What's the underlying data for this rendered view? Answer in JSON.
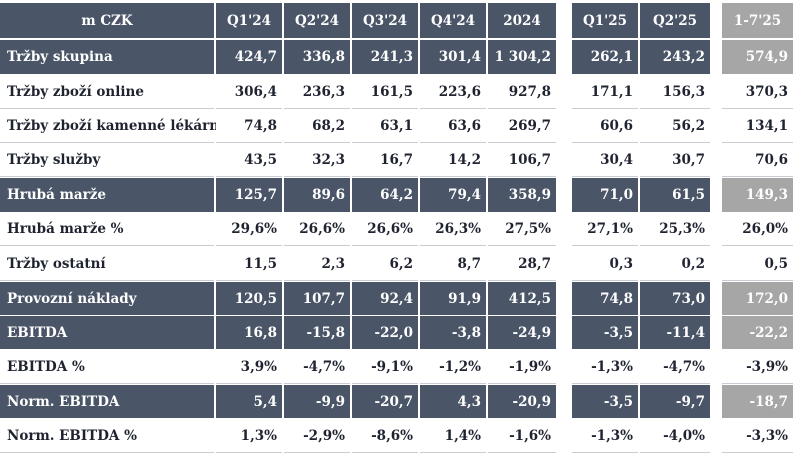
{
  "header": {
    "label": "m CZK",
    "columns": [
      "Q1'24",
      "Q2'24",
      "Q3'24",
      "Q4'24",
      "2024",
      "Q1'25",
      "Q2'25",
      "1-7'25"
    ]
  },
  "rows": [
    {
      "label": "Tržby skupina",
      "style": "dark",
      "values": [
        "424,7",
        "336,8",
        "241,3",
        "301,4",
        "1 304,2",
        "262,1",
        "243,2",
        "574,9"
      ]
    },
    {
      "label": "Tržby zboží online",
      "style": "white",
      "values": [
        "306,4",
        "236,3",
        "161,5",
        "223,6",
        "927,8",
        "171,1",
        "156,3",
        "370,3"
      ]
    },
    {
      "label": "Tržby zboží kamenné lékárny",
      "style": "white",
      "values": [
        "74,8",
        "68,2",
        "63,1",
        "63,6",
        "269,7",
        "60,6",
        "56,2",
        "134,1"
      ]
    },
    {
      "label": "Tržby služby",
      "style": "white",
      "values": [
        "43,5",
        "32,3",
        "16,7",
        "14,2",
        "106,7",
        "30,4",
        "30,7",
        "70,6"
      ]
    },
    {
      "label": "Hrubá marže",
      "style": "dark",
      "values": [
        "125,7",
        "89,6",
        "64,2",
        "79,4",
        "358,9",
        "71,0",
        "61,5",
        "149,3"
      ]
    },
    {
      "label": "Hrubá marže %",
      "style": "white",
      "values": [
        "29,6%",
        "26,6%",
        "26,6%",
        "26,3%",
        "27,5%",
        "27,1%",
        "25,3%",
        "26,0%"
      ]
    },
    {
      "label": "Tržby ostatní",
      "style": "white",
      "values": [
        "11,5",
        "2,3",
        "6,2",
        "8,7",
        "28,7",
        "0,3",
        "0,2",
        "0,5"
      ]
    },
    {
      "label": "Provozní náklady",
      "style": "dark",
      "values": [
        "120,5",
        "107,7",
        "92,4",
        "91,9",
        "412,5",
        "74,8",
        "73,0",
        "172,0"
      ]
    },
    {
      "label": "EBITDA",
      "style": "dark",
      "values": [
        "16,8",
        "-15,8",
        "-22,0",
        "-3,8",
        "-24,9",
        "-3,5",
        "-11,4",
        "-22,2"
      ]
    },
    {
      "label": "EBITDA %",
      "style": "white",
      "values": [
        "3,9%",
        "-4,7%",
        "-9,1%",
        "-1,2%",
        "-1,9%",
        "-1,3%",
        "-4,7%",
        "-3,9%"
      ]
    },
    {
      "label": "Norm. EBITDA",
      "style": "dark",
      "values": [
        "5,4",
        "-9,9",
        "-20,7",
        "4,3",
        "-20,9",
        "-3,5",
        "-9,7",
        "-18,7"
      ]
    },
    {
      "label": "Norm. EBITDA %",
      "style": "white",
      "values": [
        "1,3%",
        "-2,9%",
        "-8,6%",
        "1,4%",
        "-1,6%",
        "-1,3%",
        "-4,0%",
        "-3,3%"
      ]
    }
  ],
  "colors": {
    "dark_row": "#4a5568",
    "grey_column": "#a6a6a6",
    "text": "#1f2330"
  }
}
